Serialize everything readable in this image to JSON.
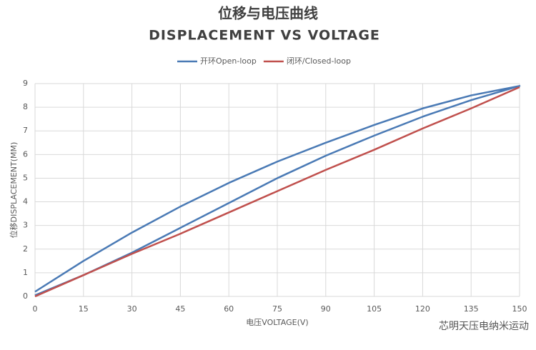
{
  "chart_data": {
    "type": "line",
    "title": "位移与电压曲线",
    "subtitle": "DISPLACEMENT VS VOLTAGE",
    "x_label": "电压VOLTAGE(V)",
    "y_label": "位移DISPLACEMENT(MM)",
    "watermark": "芯明天压电纳米运动",
    "xlim": [
      0,
      150
    ],
    "xticks": [
      0,
      15,
      30,
      45,
      60,
      75,
      90,
      105,
      120,
      135,
      150
    ],
    "ylim": [
      0,
      9
    ],
    "yticks": [
      0,
      1,
      2,
      3,
      4,
      5,
      6,
      7,
      8,
      9
    ],
    "grid": true,
    "legend": "top",
    "series": [
      {
        "name": "开环Open-loop",
        "color": "#4a7ab5",
        "x": [
          0,
          15,
          30,
          45,
          60,
          75,
          90,
          105,
          120,
          135,
          150,
          135,
          120,
          105,
          90,
          75,
          60,
          45,
          30,
          15,
          0
        ],
        "values": [
          0.05,
          0.9,
          1.85,
          2.9,
          3.95,
          5.0,
          5.95,
          6.8,
          7.6,
          8.3,
          8.9,
          8.5,
          7.95,
          7.25,
          6.5,
          5.7,
          4.8,
          3.8,
          2.7,
          1.5,
          0.2
        ]
      },
      {
        "name": "闭环/Closed-loop",
        "color": "#c0504d",
        "x": [
          0,
          15,
          30,
          45,
          60,
          75,
          90,
          105,
          120,
          135,
          150
        ],
        "values": [
          0,
          0.9,
          1.8,
          2.65,
          3.55,
          4.45,
          5.35,
          6.2,
          7.1,
          7.95,
          8.85
        ]
      }
    ]
  }
}
